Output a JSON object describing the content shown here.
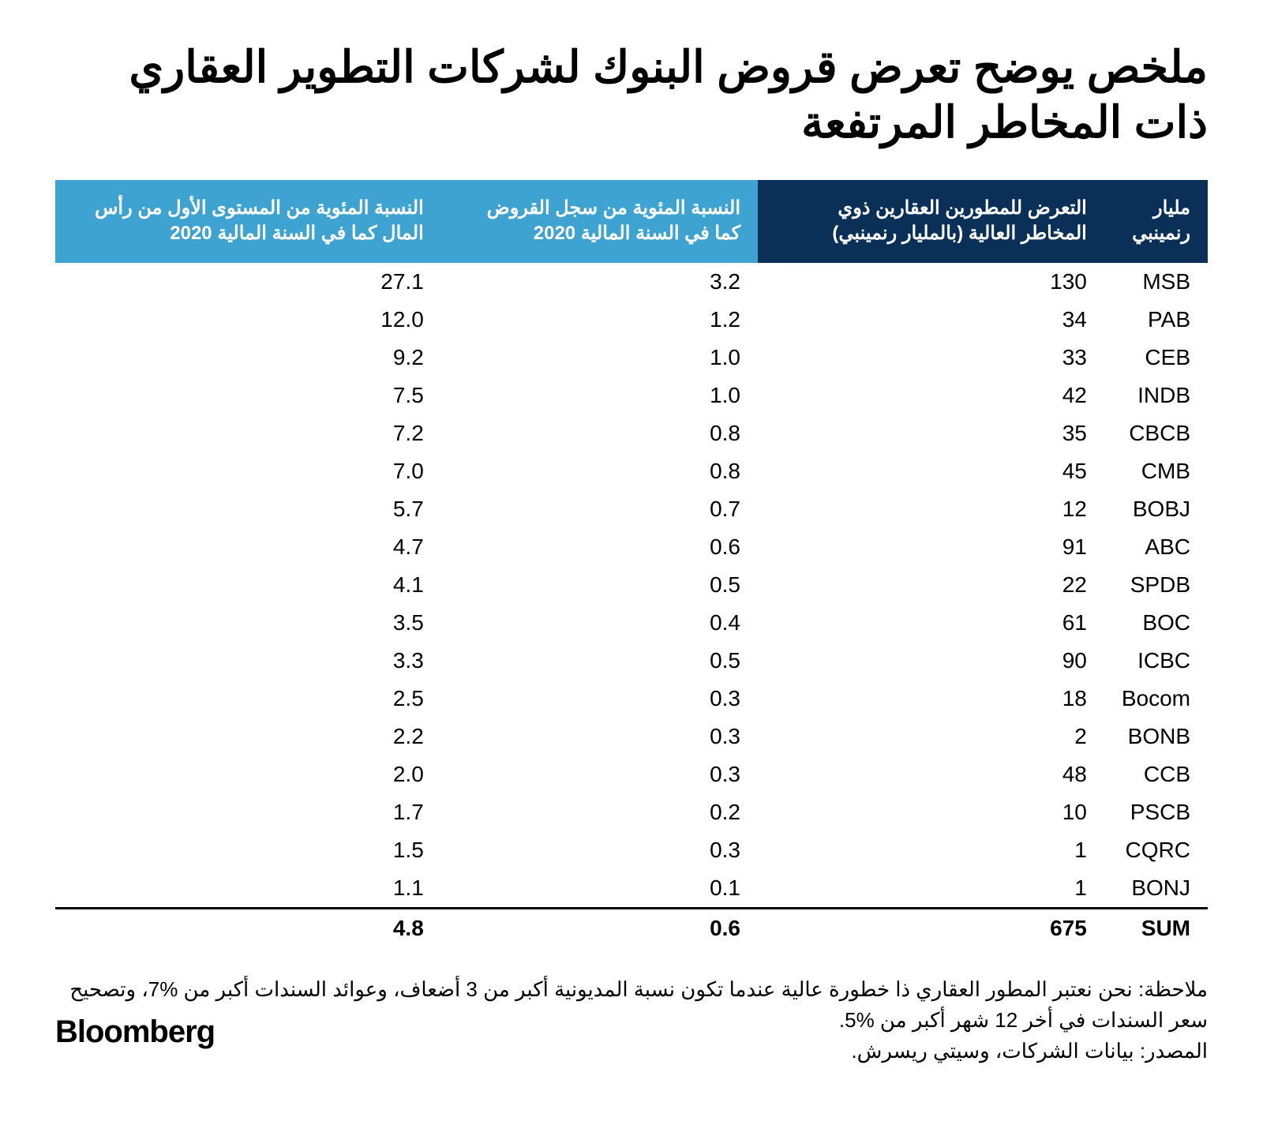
{
  "title": "ملخص يوضح تعرض قروض البنوك لشركات التطوير العقاري ذات المخاطر المرتفعة",
  "table": {
    "header_colors": {
      "dark": "#0a3057",
      "light": "#3fa3d1"
    },
    "text_color": "#000000",
    "header_text_color": "#ffffff",
    "background_color": "#ffffff",
    "border_color": "#000000",
    "columns": [
      {
        "key": "bank",
        "label": "مليار\nرنمينبي",
        "bg": "dark"
      },
      {
        "key": "exposure",
        "label": "التعرض للمطورين العقارين ذوي المخاطر العالية (بالمليار رنمينبي)",
        "bg": "dark"
      },
      {
        "key": "pct_loan",
        "label": "النسبة المئوية من سجل القروض كما في السنة المالية 2020",
        "bg": "light"
      },
      {
        "key": "pct_cet1",
        "label": "النسبة المئوية من المستوى الأول من رأس المال  كما في السنة المالية 2020",
        "bg": "light"
      }
    ],
    "rows": [
      {
        "bank": "MSB",
        "exposure": "130",
        "pct_loan": "3.2",
        "pct_cet1": "27.1"
      },
      {
        "bank": "PAB",
        "exposure": "34",
        "pct_loan": "1.2",
        "pct_cet1": "12.0"
      },
      {
        "bank": "CEB",
        "exposure": "33",
        "pct_loan": "1.0",
        "pct_cet1": "9.2"
      },
      {
        "bank": "INDB",
        "exposure": "42",
        "pct_loan": "1.0",
        "pct_cet1": "7.5"
      },
      {
        "bank": "CBCB",
        "exposure": "35",
        "pct_loan": "0.8",
        "pct_cet1": "7.2"
      },
      {
        "bank": "CMB",
        "exposure": "45",
        "pct_loan": "0.8",
        "pct_cet1": "7.0"
      },
      {
        "bank": "BOBJ",
        "exposure": "12",
        "pct_loan": "0.7",
        "pct_cet1": "5.7"
      },
      {
        "bank": "ABC",
        "exposure": "91",
        "pct_loan": "0.6",
        "pct_cet1": "4.7"
      },
      {
        "bank": "SPDB",
        "exposure": "22",
        "pct_loan": "0.5",
        "pct_cet1": "4.1"
      },
      {
        "bank": "BOC",
        "exposure": "61",
        "pct_loan": "0.4",
        "pct_cet1": "3.5"
      },
      {
        "bank": "ICBC",
        "exposure": "90",
        "pct_loan": "0.5",
        "pct_cet1": "3.3"
      },
      {
        "bank": "Bocom",
        "exposure": "18",
        "pct_loan": "0.3",
        "pct_cet1": "2.5"
      },
      {
        "bank": "BONB",
        "exposure": "2",
        "pct_loan": "0.3",
        "pct_cet1": "2.2"
      },
      {
        "bank": "CCB",
        "exposure": "48",
        "pct_loan": "0.3",
        "pct_cet1": "2.0"
      },
      {
        "bank": "PSCB",
        "exposure": "10",
        "pct_loan": "0.2",
        "pct_cet1": "1.7"
      },
      {
        "bank": "CQRC",
        "exposure": "1",
        "pct_loan": "0.3",
        "pct_cet1": "1.5"
      },
      {
        "bank": "BONJ",
        "exposure": "1",
        "pct_loan": "0.1",
        "pct_cet1": "1.1"
      }
    ],
    "sum": {
      "bank": "SUM",
      "exposure": "675",
      "pct_loan": "0.6",
      "pct_cet1": "4.8"
    },
    "font_size_header": 24,
    "font_size_body": 28
  },
  "notes": {
    "note1": "ملاحظة: نحن نعتبر المطور العقاري ذا خطورة عالية عندما تكون نسبة المديونية أكبر من 3 أضعاف، وعوائد السندات أكبر من %7، وتصحيح سعر السندات في أخر 12 شهر أكبر من %5.",
    "note2": "المصدر: بيانات الشركات، وسيتي ريسرش."
  },
  "logo": "Bloomberg"
}
